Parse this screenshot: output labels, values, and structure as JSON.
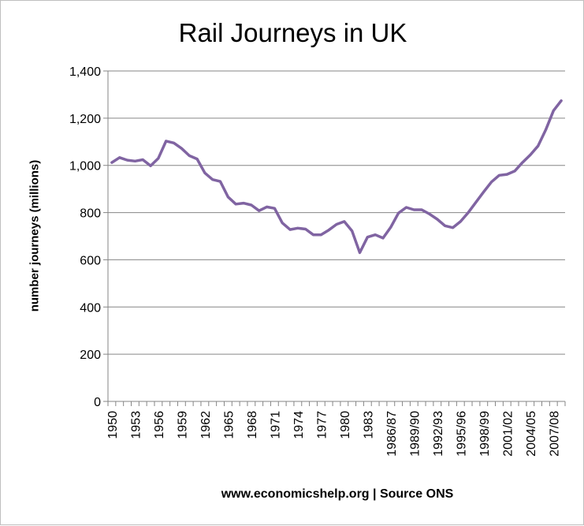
{
  "chart_data": {
    "type": "line",
    "title": "Rail Journeys in UK",
    "ylabel": "number journeys (millions)",
    "xlabel": "www.economicshelp.org | Source ONS",
    "ylim": [
      0,
      1400
    ],
    "yticks": [
      0,
      200,
      400,
      600,
      800,
      1000,
      1200,
      1400
    ],
    "ytick_labels": [
      "0",
      "200",
      "400",
      "600",
      "800",
      "1,000",
      "1,200",
      "1,400"
    ],
    "grid": "horizontal",
    "line_color": "#8064a2",
    "categories": [
      "1950",
      "1951",
      "1952",
      "1953",
      "1954",
      "1955",
      "1956",
      "1957",
      "1958",
      "1959",
      "1960",
      "1961",
      "1962",
      "1963",
      "1964",
      "1965",
      "1966",
      "1967",
      "1968",
      "1969",
      "1970",
      "1971",
      "1972",
      "1973",
      "1974",
      "1975",
      "1976",
      "1977",
      "1978",
      "1979",
      "1980",
      "1981",
      "1982",
      "1983",
      "1984",
      "1985/86",
      "1986/87",
      "1987/88",
      "1988/89",
      "1989/90",
      "1990/91",
      "1991/92",
      "1992/93",
      "1993/94",
      "1994/95",
      "1995/96",
      "1996/97",
      "1997/98",
      "1998/99",
      "1999/00",
      "2000/01",
      "2001/02",
      "2002/03",
      "2003/04",
      "2004/05",
      "2005/06",
      "2006/07",
      "2007/08",
      "2008/09"
    ],
    "tick_labels_shown": [
      "1950",
      "1953",
      "1956",
      "1959",
      "1962",
      "1965",
      "1968",
      "1971",
      "1974",
      "1977",
      "1980",
      "1983",
      "1986/87",
      "1989/90",
      "1992/93",
      "1995/96",
      "1998/99",
      "2001/02",
      "2004/05",
      "2007/08"
    ],
    "series": [
      {
        "values": [
          1012,
          1033,
          1022,
          1018,
          1024,
          998,
          1030,
          1103,
          1095,
          1072,
          1041,
          1027,
          968,
          940,
          932,
          866,
          836,
          840,
          832,
          808,
          824,
          818,
          756,
          728,
          734,
          730,
          706,
          706,
          726,
          750,
          762,
          722,
          630,
          696,
          706,
          692,
          738,
          798,
          822,
          812,
          812,
          794,
          772,
          744,
          736,
          762,
          800,
          844,
          888,
          930,
          958,
          962,
          976,
          1012,
          1044,
          1082,
          1150,
          1232,
          1274
        ]
      }
    ]
  }
}
